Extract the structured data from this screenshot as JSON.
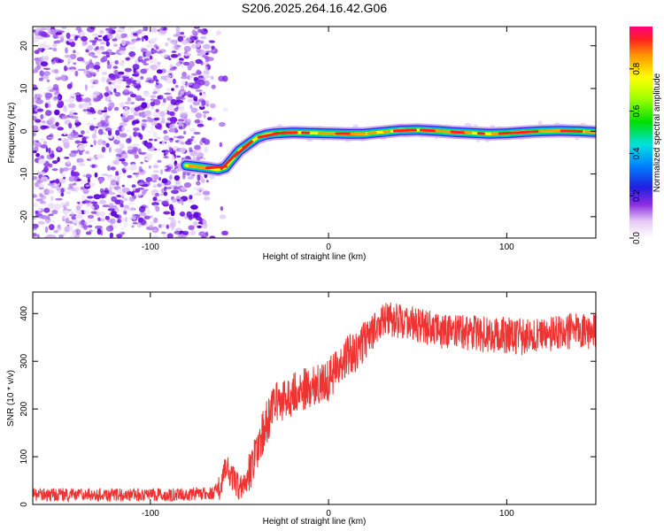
{
  "chart_data": [
    {
      "type": "heatmap",
      "title": "S206.2025.264.16.42.G06",
      "xlabel": "Height of straight line (km)",
      "ylabel": "Frequency (Hz)",
      "xlim": [
        -166,
        150
      ],
      "ylim": [
        -25,
        24.5
      ],
      "xticks": [
        -100,
        0,
        100
      ],
      "xtick_labels": [
        "-100",
        "0",
        "100"
      ],
      "yticks": [
        -20,
        -10,
        0,
        10,
        20
      ],
      "ytick_labels": [
        "-20",
        "-10",
        "0",
        "10",
        "20"
      ],
      "noise_region_x": [
        -166,
        -58
      ],
      "ridge": {
        "x": [
          -80,
          -70,
          -62,
          -58,
          -54,
          -50,
          -45,
          -40,
          -35,
          -30,
          -20,
          -10,
          0,
          10,
          20,
          30,
          40,
          50,
          60,
          70,
          80,
          90,
          100,
          110,
          120,
          130,
          140,
          150
        ],
        "y": [
          -8,
          -8.5,
          -9,
          -8.5,
          -6.5,
          -4.5,
          -3,
          -1.5,
          -0.8,
          -0.5,
          -0.3,
          -0.4,
          -0.5,
          -0.6,
          -0.6,
          -0.2,
          0.2,
          0.3,
          0.1,
          -0.2,
          -0.4,
          -0.6,
          -0.5,
          -0.2,
          0.0,
          0.1,
          0.0,
          -0.2
        ]
      },
      "colorbar": {
        "label": "Normalized spectral amplitude",
        "ticks": [
          0.0,
          0.2,
          0.4,
          0.6,
          0.8
        ],
        "tick_labels": [
          "0.0",
          "0.2",
          "0.4",
          "0.6",
          "0.8"
        ],
        "range": [
          0,
          1
        ]
      }
    },
    {
      "type": "line",
      "title": "",
      "xlabel": "Height of straight line (km)",
      "ylabel": "SNR (10 * v/v)",
      "xlim": [
        -166,
        150
      ],
      "ylim": [
        0,
        445
      ],
      "xticks": [
        -100,
        0,
        100
      ],
      "xtick_labels": [
        "-100",
        "0",
        "100"
      ],
      "yticks": [
        0,
        100,
        200,
        300,
        400
      ],
      "ytick_labels": [
        "0",
        "100",
        "200",
        "300",
        "400"
      ],
      "color": "#ee3333",
      "series": [
        {
          "name": "SNR",
          "x": [
            -166,
            -150,
            -130,
            -110,
            -90,
            -75,
            -65,
            -60,
            -57,
            -55,
            -50,
            -45,
            -40,
            -35,
            -30,
            -25,
            -20,
            -15,
            -10,
            -5,
            0,
            5,
            10,
            15,
            20,
            25,
            30,
            40,
            50,
            60,
            70,
            80,
            90,
            100,
            110,
            120,
            130,
            140,
            150
          ],
          "y": [
            20,
            20,
            20,
            20,
            20,
            22,
            25,
            40,
            90,
            60,
            35,
            60,
            120,
            170,
            210,
            220,
            230,
            240,
            245,
            250,
            260,
            290,
            310,
            320,
            345,
            370,
            385,
            385,
            375,
            365,
            360,
            360,
            355,
            355,
            350,
            355,
            360,
            365,
            360
          ]
        }
      ]
    }
  ]
}
